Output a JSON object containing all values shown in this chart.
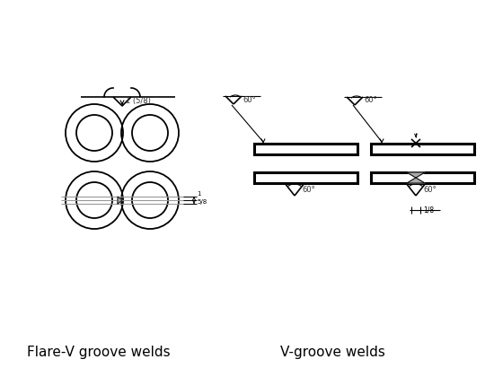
{
  "title_left": "Flare-V groove welds",
  "title_right": "V-groove welds",
  "bg_color": "#ffffff",
  "line_color": "#000000",
  "gray_color": "#999999",
  "title_fontsize": 11,
  "label_fontsize": 6.5
}
